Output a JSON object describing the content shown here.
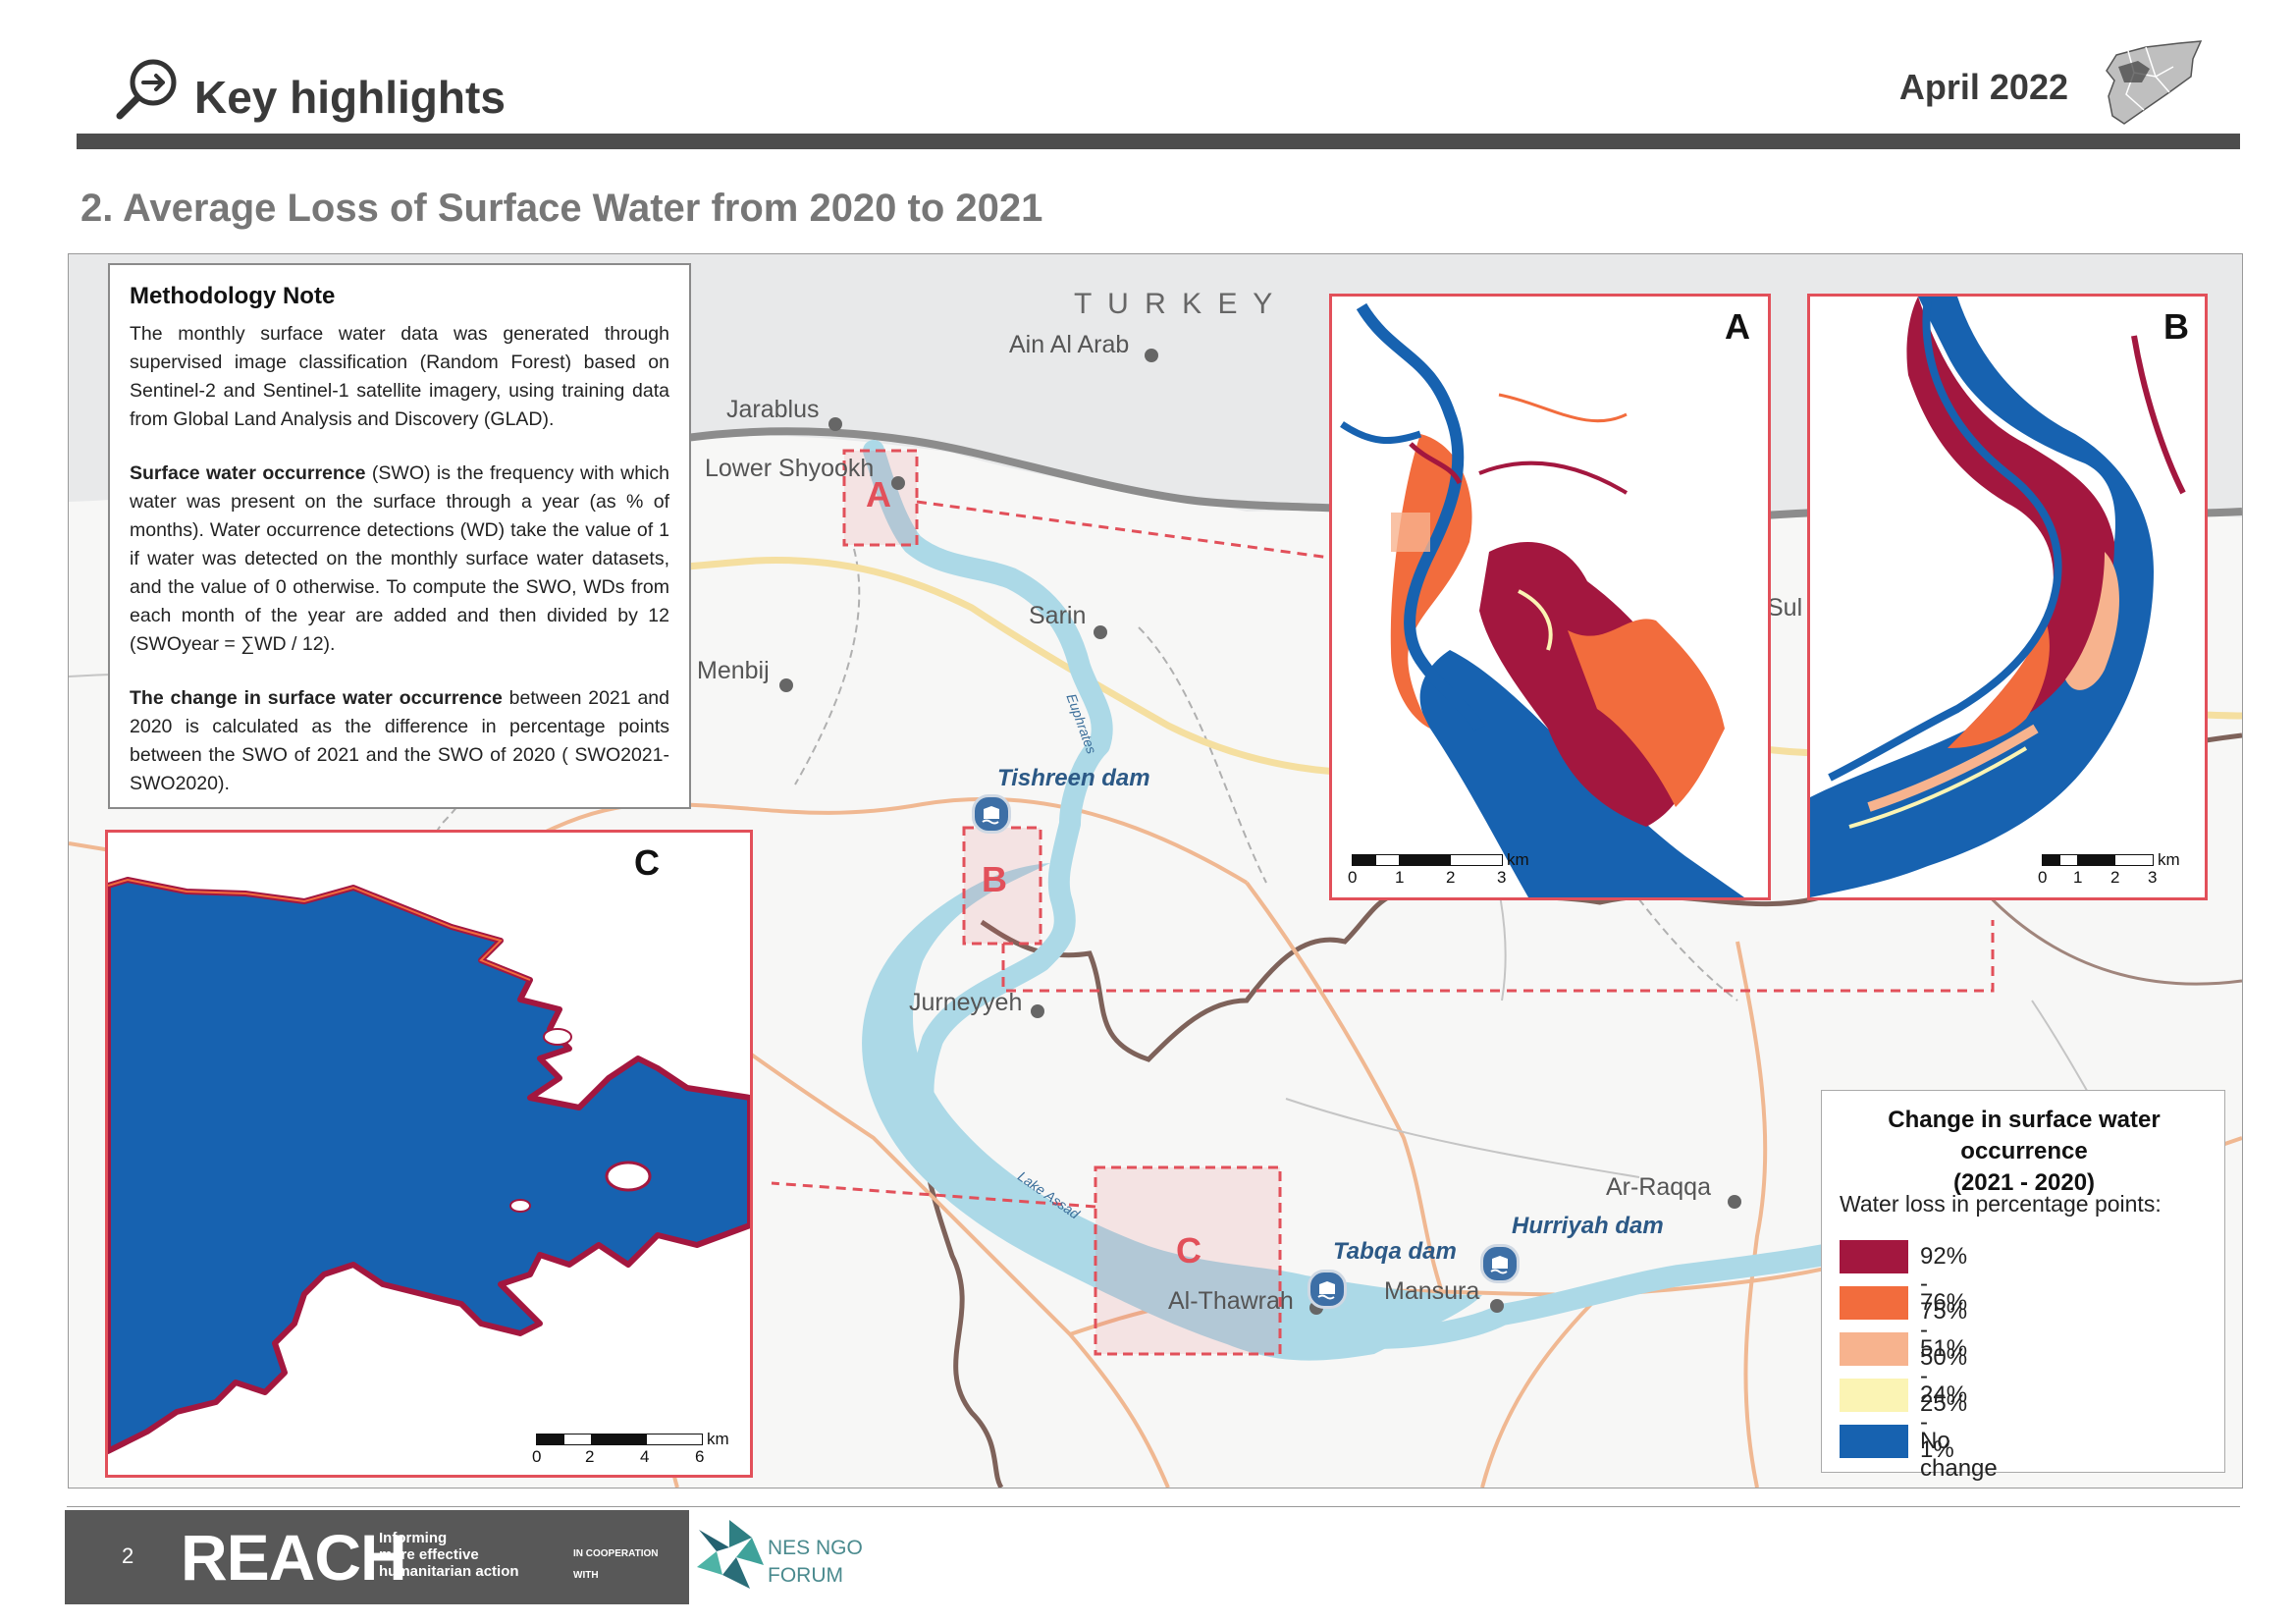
{
  "header": {
    "title": "Key highlights",
    "date": "April 2022",
    "icons": [
      "magnifier-arrow-icon",
      "syria-locator-map"
    ]
  },
  "section_title": "2. Average Loss of Surface Water from 2020 to 2021",
  "methodology": {
    "heading": "Methodology Note",
    "p1": "The monthly surface water data was generated through supervised image classification (Random Forest) based on Sentinel-2 and Sentinel-1 satellite imagery, using training data from Global Land Analysis and Discovery (GLAD).",
    "p2_bold": "Surface water occurrence",
    "p2": " (SWO) is the frequency with which water was present on the surface through a year (as % of months). Water occurrence detections (WD) take the value of 1 if water was detected on the monthly surface water datasets, and the value of 0 otherwise. To compute the SWO, WDs from each month of the year are added and then divided by 12 (SWOyear = ∑WD / 12).",
    "p3_bold": "The change in surface water occurrence",
    "p3": " between 2021 and 2020 is calculated as the difference in percentage points between the SWO of 2021 and the SWO of 2020 ( SWO2021- SWO2020)."
  },
  "map": {
    "country_label": "T U R K E Y",
    "places": {
      "ain_al_arab": "Ain Al Arab",
      "jarablus": "Jarablus",
      "lower_shyookh": "Lower Shyookh",
      "sarin": "Sarin",
      "menbij": "Menbij",
      "jurneyyeh": "Jurneyyeh",
      "ar_raqqa": "Ar-Raqqa",
      "al_thawrah": "Al-Thawrah",
      "mansura": "Mansura",
      "sul": "Sul"
    },
    "dams": {
      "tishreen": "Tishreen dam",
      "tabqa": "Tabqa dam",
      "hurriyah": "Hurriyah dam"
    },
    "rivers": {
      "euphrates": "Euphrates",
      "lake_assad": "Lake Assad"
    },
    "box_labels": [
      "A",
      "B",
      "C"
    ],
    "inset_labels": {
      "a": "A",
      "b": "B",
      "c": "C"
    },
    "scalebar_a": {
      "unit": "km",
      "ticks": [
        "0",
        "1",
        "2",
        "3"
      ]
    },
    "scalebar_b": {
      "unit": "km",
      "ticks": [
        "0",
        "1",
        "2",
        "3"
      ]
    },
    "scalebar_c": {
      "unit": "km",
      "ticks": [
        "0",
        "2",
        "4",
        "6"
      ]
    }
  },
  "legend": {
    "title_line1": "Change in surface water occurrence",
    "title_line2": "(2021 - 2020)",
    "subtitle": "Water loss in percentage points:",
    "items": [
      {
        "label": "92% - 75%",
        "color": "#a3173f"
      },
      {
        "label": "76% - 50%",
        "color": "#f26c3d"
      },
      {
        "label": "51% - 25%",
        "color": "#f7b38e"
      },
      {
        "label": "24% - 1%",
        "color": "#fbf4b4"
      },
      {
        "label": "No change",
        "color": "#1762b0"
      }
    ]
  },
  "colors": {
    "inset_border": "#e2505a",
    "water": "#1762b0",
    "lake_fill": "#acd9e7",
    "footer_dark": "#585858"
  },
  "footer": {
    "page_number": "2",
    "logo": "REACH",
    "tagline_1": "Informing",
    "tagline_2": "more effective",
    "tagline_3": "humanitarian action",
    "cooperation_1": "IN COOPERATION",
    "cooperation_2": "WITH",
    "partner_1": "NES NGO",
    "partner_2": "FORUM"
  }
}
